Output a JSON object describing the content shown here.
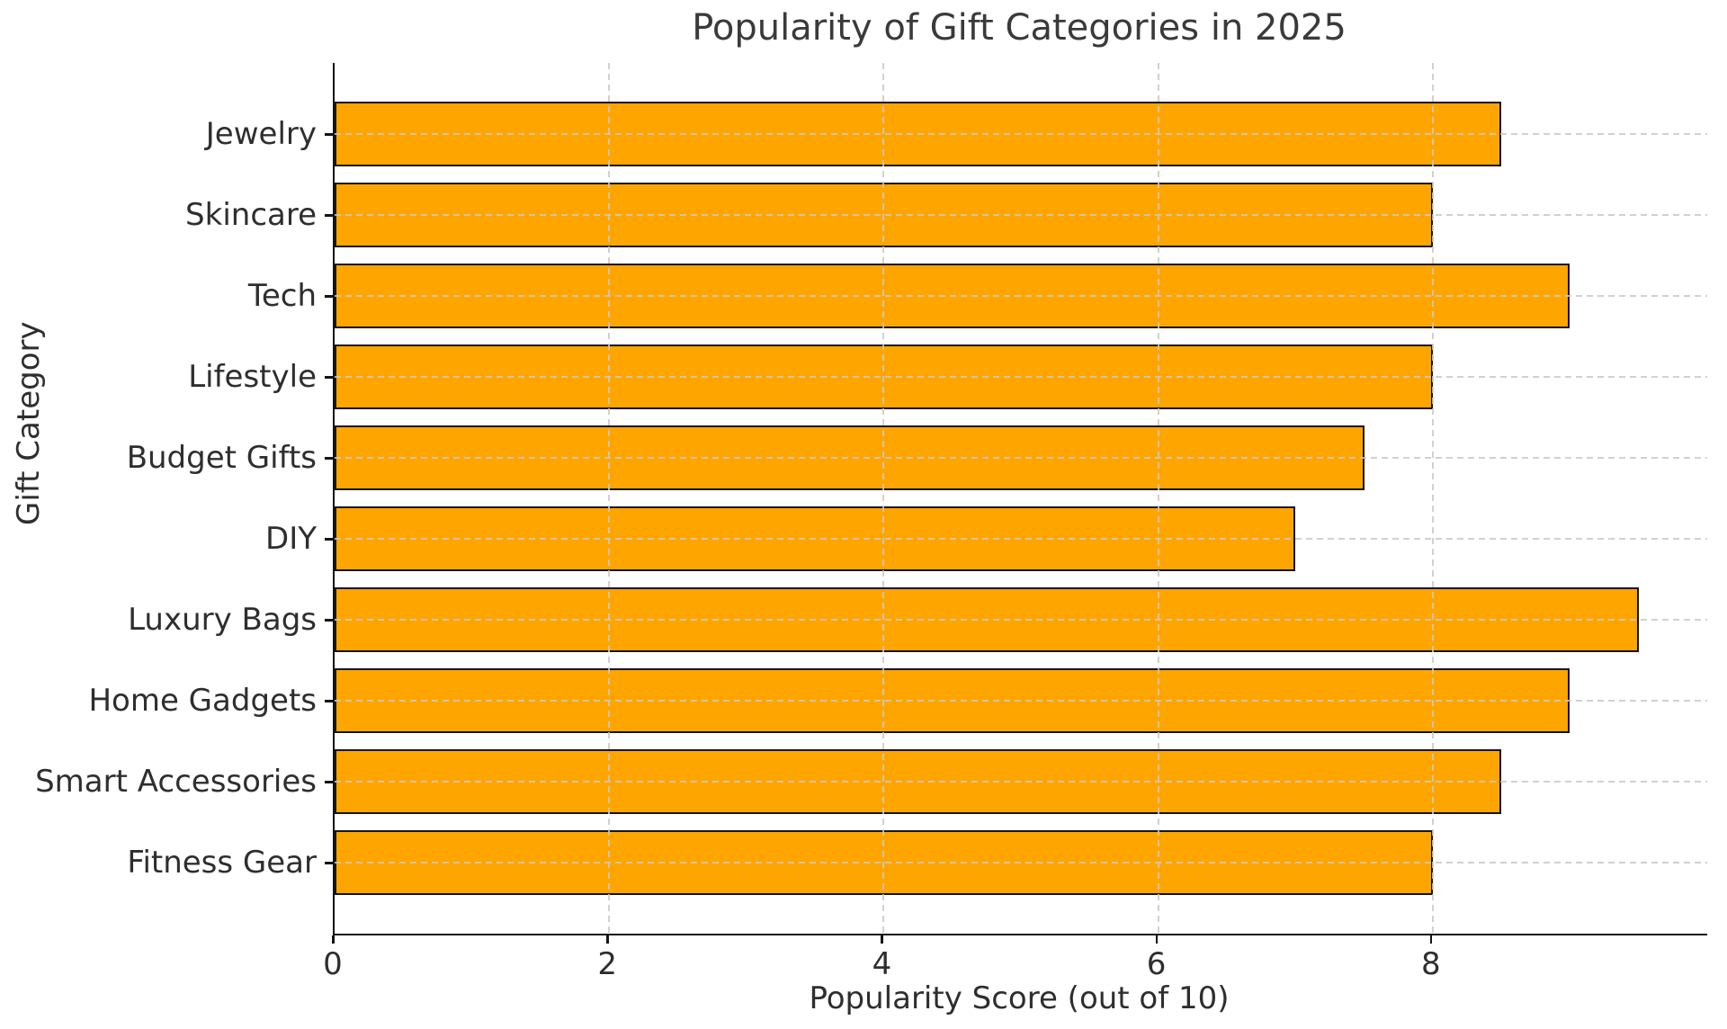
{
  "chart_data": {
    "type": "bar",
    "orientation": "horizontal",
    "title": "Popularity of Gift Categories in 2025",
    "xlabel": "Popularity Score (out of 10)",
    "ylabel": "Gift Category",
    "categories": [
      "Jewelry",
      "Skincare",
      "Tech",
      "Lifestyle",
      "Budget Gifts",
      "DIY",
      "Luxury Bags",
      "Home Gadgets",
      "Smart Accessories",
      "Fitness Gear"
    ],
    "values": [
      8.5,
      8.0,
      9.0,
      8.0,
      7.5,
      7.0,
      9.5,
      9.0,
      8.5,
      8.0
    ],
    "xlim": [
      0,
      10
    ],
    "xticks": [
      0,
      2,
      4,
      6,
      8
    ],
    "grid": true,
    "legend": false,
    "bar_color": "#FFA500",
    "bar_edge_color": "#141414",
    "grid_color": "#c9c9c9",
    "background_color": "#ffffff",
    "text_color": "#2e2e2e"
  }
}
